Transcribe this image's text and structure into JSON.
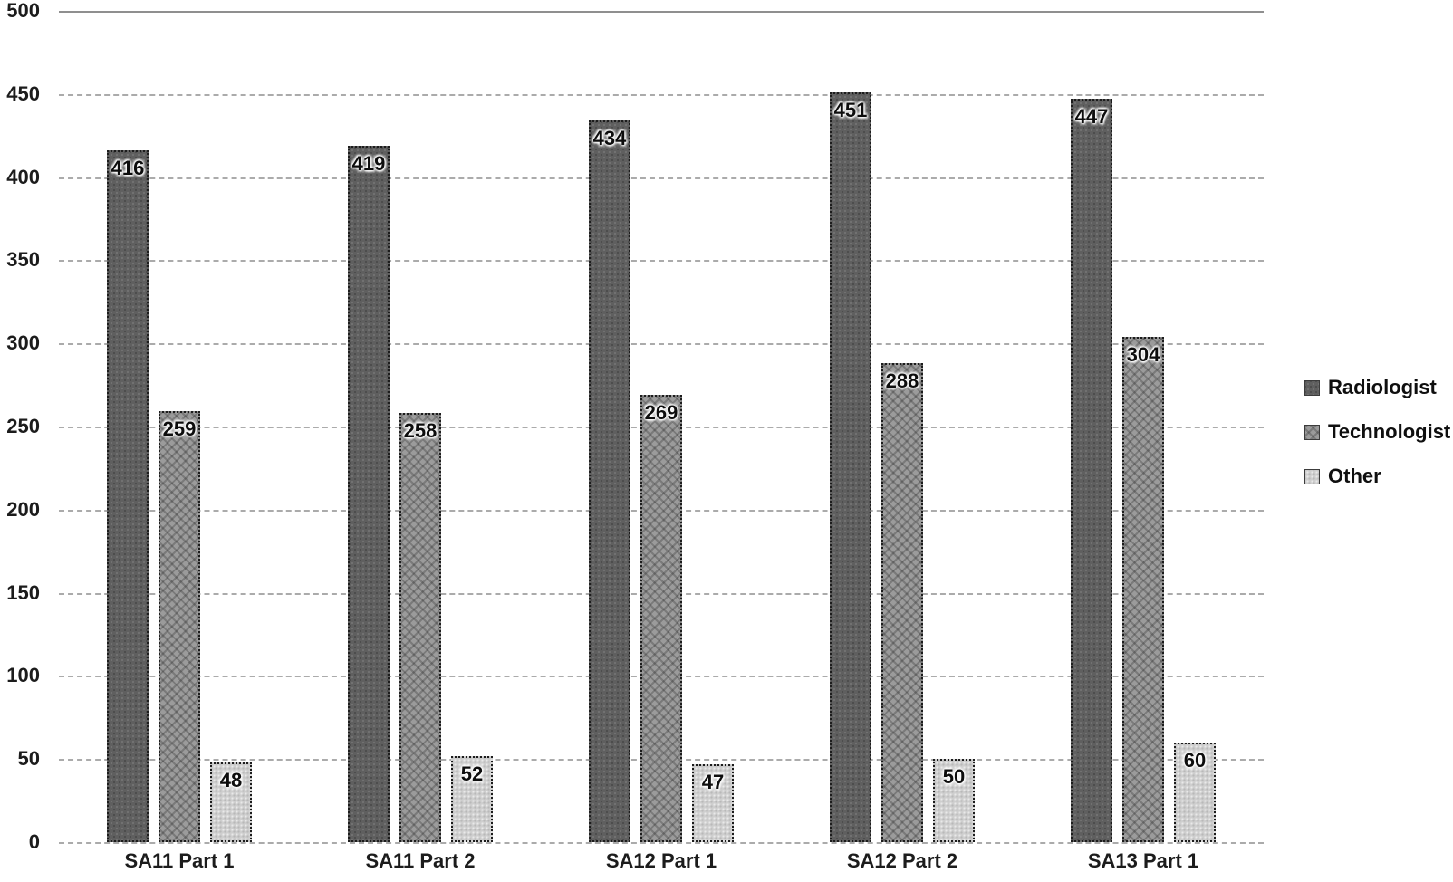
{
  "chart_data": {
    "type": "bar",
    "title": "",
    "categories": [
      "SA11 Part 1",
      "SA11 Part 2",
      "SA12 Part 1",
      "SA12 Part 2",
      "SA13 Part 1"
    ],
    "series": [
      {
        "name": "Radiologist",
        "values": [
          416,
          419,
          434,
          451,
          447
        ],
        "color": "#5f5f5f",
        "pattern": "dark-speckle"
      },
      {
        "name": "Technologist",
        "values": [
          259,
          258,
          269,
          288,
          304
        ],
        "color": "#9b9b9b",
        "pattern": "herringbone"
      },
      {
        "name": "Other",
        "values": [
          48,
          52,
          47,
          50,
          60
        ],
        "color": "#cecece",
        "pattern": "light-speckle"
      }
    ],
    "xlabel": "",
    "ylabel": "",
    "ylim": [
      0,
      500
    ],
    "yticks": [
      0,
      50,
      100,
      150,
      200,
      250,
      300,
      350,
      400,
      450,
      500
    ],
    "grid": "horizontal-dashed",
    "grid_top_line": "solid",
    "legend_position": "right",
    "data_labels": "inside-end",
    "label_halo_color": "#ffffff",
    "text_color": "#1c1c1c"
  }
}
